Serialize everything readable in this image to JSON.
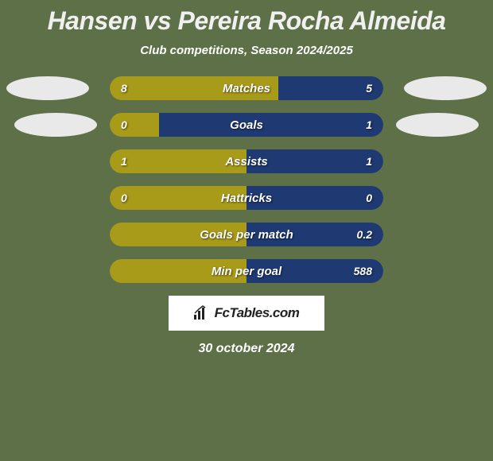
{
  "background_color": "#5d7048",
  "left_color": "#a99b1a",
  "right_color": "#1f3a72",
  "badge_color": "#e9e9e9",
  "text_color": "#ffffff",
  "title_color": "#f0f0f0",
  "logo_bg": "#ffffff",
  "logo_color": "#222222",
  "title": "Hansen vs Pereira Rocha Almeida",
  "subtitle": "Club competitions, Season 2024/2025",
  "date": "30 october 2024",
  "logo_text": "FcTables.com",
  "bars": [
    {
      "label": "Matches",
      "left_val": "8",
      "right_val": "5",
      "left_pct": 61.5,
      "right_pct": 38.5
    },
    {
      "label": "Goals",
      "left_val": "0",
      "right_val": "1",
      "left_pct": 18,
      "right_pct": 82
    },
    {
      "label": "Assists",
      "left_val": "1",
      "right_val": "1",
      "left_pct": 50,
      "right_pct": 50
    },
    {
      "label": "Hattricks",
      "left_val": "0",
      "right_val": "0",
      "left_pct": 50,
      "right_pct": 50
    },
    {
      "label": "Goals per match",
      "left_val": "",
      "right_val": "0.2",
      "left_pct": 50,
      "right_pct": 50
    },
    {
      "label": "Min per goal",
      "left_val": "",
      "right_val": "588",
      "left_pct": 50,
      "right_pct": 50
    }
  ]
}
